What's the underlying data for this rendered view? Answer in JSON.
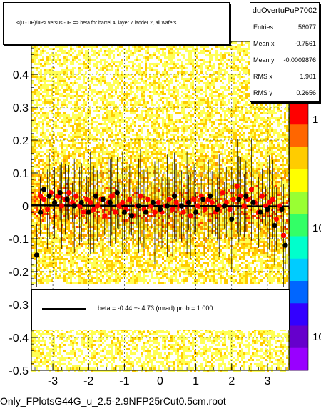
{
  "title_box": {
    "text": "<(u - uP)/uP> versus -uP => beta for barrel 4, layer 7 ladder 2, all wafers"
  },
  "stats": {
    "title": "duOvertuPuP7002",
    "rows": [
      {
        "label": "Entries",
        "value": "56077"
      },
      {
        "label": "Mean x",
        "value": "-0.7561"
      },
      {
        "label": "Mean y",
        "value": "-0.0009876"
      },
      {
        "label": "RMS x",
        "value": "1.901"
      },
      {
        "label": "RMS y",
        "value": "0.2656"
      }
    ]
  },
  "legend": {
    "text": "beta =    -0.44 +-   4.73 (mrad) prob = 1.000"
  },
  "bottom_label": "Only_FPlotsG44G_u_2.5-2.9NFP25rCut0.5cm.root",
  "colors": {
    "red_marker": "#ff0000",
    "black_marker": "#000000",
    "fit_line": "#000000"
  },
  "chart_data": {
    "type": "scatter",
    "xlim": [
      -3.6,
      3.6
    ],
    "ylim": [
      -0.5,
      0.5
    ],
    "xticks": [
      "-3",
      "-2",
      "-1",
      "0",
      "1",
      "2",
      "3"
    ],
    "xtick_values": [
      -3,
      -2,
      -1,
      0,
      1,
      2,
      3
    ],
    "yticks": [
      "-0.5",
      "-0.4",
      "-0.3",
      "-0.2",
      "-0.1",
      "0",
      "0.1",
      "0.2",
      "0.3",
      "0.4"
    ],
    "ytick_values": [
      -0.5,
      -0.4,
      -0.3,
      -0.2,
      -0.1,
      0,
      0.1,
      0.2,
      0.3,
      0.4
    ],
    "zticks": [
      "1",
      "10",
      "10"
    ],
    "grid": true,
    "background": "2D histogram (yellow/orange/red density)",
    "fit_line": {
      "slope": -0.00044,
      "intercept": 0.0
    },
    "series": [
      {
        "color": "red",
        "x": [
          -3.35,
          -3.25,
          -3.15,
          -3.05,
          -2.95,
          -2.85,
          -2.75,
          -2.65,
          -2.55,
          -2.45,
          -2.35,
          -2.25,
          -2.15,
          -2.05,
          -1.95,
          -1.85,
          -1.75,
          -1.65,
          -1.55,
          -1.45,
          -1.35,
          -1.25,
          -1.15,
          -1.05,
          -0.95,
          -0.85,
          -0.75,
          -0.65,
          -0.55,
          -0.45,
          -0.35,
          -0.25,
          -0.15,
          -0.05,
          0.05,
          0.15,
          0.25,
          0.35,
          0.45,
          0.55,
          0.65,
          0.75,
          0.85,
          0.95,
          1.05,
          1.15,
          1.25,
          1.35,
          1.45,
          1.55,
          1.65,
          1.75,
          1.85,
          1.95,
          2.05,
          2.15,
          2.25,
          2.35,
          2.45,
          2.55,
          2.65,
          2.75,
          2.85,
          2.95,
          3.05,
          3.15,
          3.25,
          3.35,
          3.45
        ],
        "y": [
          0.03,
          0.02,
          -0.01,
          0.04,
          0.01,
          0.03,
          0.0,
          0.02,
          0.04,
          0.01,
          0.03,
          0.0,
          -0.02,
          0.02,
          0.01,
          -0.01,
          0.0,
          0.02,
          -0.03,
          0.01,
          0.03,
          -0.02,
          0.0,
          0.01,
          -0.01,
          0.02,
          -0.03,
          0.0,
          0.03,
          -0.01,
          0.02,
          0.0,
          -0.02,
          0.01,
          -0.02,
          0.0,
          0.02,
          -0.01,
          0.01,
          0.0,
          -0.02,
          0.01,
          -0.03,
          0.02,
          0.0,
          0.03,
          -0.01,
          0.02,
          0.01,
          -0.02,
          0.0,
          0.04,
          0.01,
          -0.01,
          0.02,
          0.06,
          0.03,
          0.0,
          0.02,
          0.05,
          0.01,
          -0.02,
          0.03,
          0.0,
          0.01,
          0.02,
          -0.04,
          0.0,
          -0.09
        ]
      },
      {
        "color": "black",
        "x": [
          -3.45,
          -3.35,
          -3.25,
          -3.1,
          -2.95,
          -2.8,
          -2.6,
          -2.4,
          -2.2,
          -2.0,
          -1.8,
          -1.6,
          -1.4,
          -1.2,
          -1.0,
          -0.8,
          -0.6,
          -0.4,
          -0.2,
          0.0,
          0.2,
          0.4,
          0.6,
          0.8,
          1.0,
          1.2,
          1.4,
          1.6,
          1.8,
          2.0,
          2.2,
          2.4,
          2.6,
          2.8,
          3.0,
          3.2,
          3.4,
          3.5
        ],
        "y": [
          -0.15,
          -0.02,
          0.05,
          0.03,
          0.01,
          0.04,
          0.02,
          0.0,
          0.01,
          -0.02,
          0.03,
          0.02,
          0.01,
          0.04,
          -0.02,
          -0.03,
          0.0,
          -0.02,
          0.01,
          -0.01,
          0.0,
          0.03,
          0.0,
          0.01,
          -0.02,
          0.02,
          0.03,
          -0.01,
          0.0,
          -0.04,
          0.02,
          0.03,
          0.01,
          -0.02,
          -0.01,
          -0.06,
          -0.01,
          -0.12
        ]
      }
    ]
  }
}
